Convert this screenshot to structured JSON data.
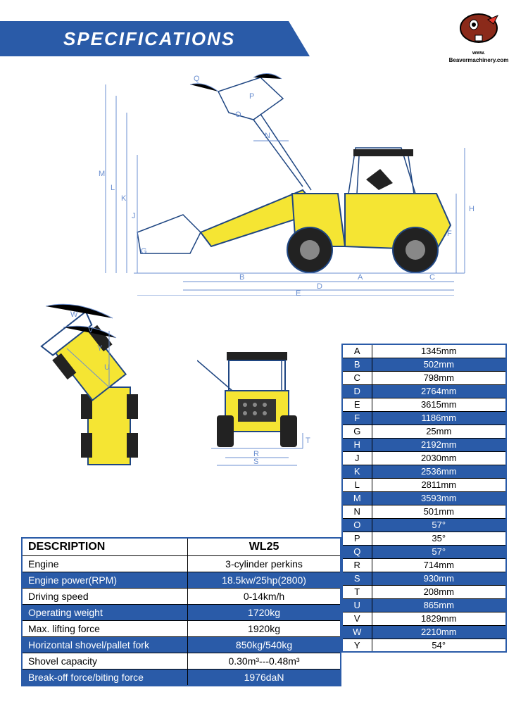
{
  "header": {
    "title": "SPECIFICATIONS"
  },
  "logo": {
    "url_text": "Beavermachinery.com",
    "www": "www."
  },
  "colors": {
    "brand_blue": "#2a5ba8",
    "dark_blue": "#1f4682",
    "machine_yellow": "#f5e533",
    "text_black": "#000000",
    "white": "#ffffff",
    "blueprint_line": "#6b8fd0"
  },
  "dimension_table": {
    "columns": [
      "key",
      "value"
    ],
    "key_width_pct": 18,
    "rows": [
      {
        "key": "A",
        "value": "1345mm",
        "blue": false
      },
      {
        "key": "B",
        "value": "502mm",
        "blue": true
      },
      {
        "key": "C",
        "value": "798mm",
        "blue": false
      },
      {
        "key": "D",
        "value": "2764mm",
        "blue": true
      },
      {
        "key": "E",
        "value": "3615mm",
        "blue": false
      },
      {
        "key": "F",
        "value": "1186mm",
        "blue": true
      },
      {
        "key": "G",
        "value": "25mm",
        "blue": false
      },
      {
        "key": "H",
        "value": "2192mm",
        "blue": true
      },
      {
        "key": "J",
        "value": "2030mm",
        "blue": false
      },
      {
        "key": "K",
        "value": "2536mm",
        "blue": true
      },
      {
        "key": "L",
        "value": "2811mm",
        "blue": false
      },
      {
        "key": "M",
        "value": "3593mm",
        "blue": true
      },
      {
        "key": "N",
        "value": "501mm",
        "blue": false
      },
      {
        "key": "O",
        "value": "57°",
        "blue": true
      },
      {
        "key": "P",
        "value": "35°",
        "blue": false
      },
      {
        "key": "Q",
        "value": "57°",
        "blue": true
      },
      {
        "key": "R",
        "value": "714mm",
        "blue": false
      },
      {
        "key": "S",
        "value": "930mm",
        "blue": true
      },
      {
        "key": "T",
        "value": "208mm",
        "blue": false
      },
      {
        "key": "U",
        "value": "865mm",
        "blue": true
      },
      {
        "key": "V",
        "value": "1829mm",
        "blue": false
      },
      {
        "key": "W",
        "value": "2210mm",
        "blue": true
      },
      {
        "key": "Y",
        "value": "54°",
        "blue": false
      }
    ]
  },
  "description_table": {
    "header": {
      "left": "DESCRIPTION",
      "right": "WL25"
    },
    "rows": [
      {
        "left": "Engine",
        "right": "3-cylinder perkins",
        "blue": false
      },
      {
        "left": "Engine power(RPM)",
        "right": "18.5kw/25hp(2800)",
        "blue": true
      },
      {
        "left": "Driving speed",
        "right": "0-14km/h",
        "blue": false
      },
      {
        "left": "Operating weight",
        "right": "1720kg",
        "blue": true
      },
      {
        "left": "Max. lifting force",
        "right": "1920kg",
        "blue": false
      },
      {
        "left": "Horizontal shovel/pallet fork",
        "right": "850kg/540kg",
        "blue": true
      },
      {
        "left": "Shovel capacity",
        "right": "0.30m³---0.48m³",
        "blue": false
      },
      {
        "left": "Break-off force/biting force",
        "right": "1976daN",
        "blue": true
      }
    ]
  },
  "diagram_labels": {
    "side_view": [
      "A",
      "B",
      "C",
      "D",
      "E",
      "F",
      "G",
      "H",
      "J",
      "K",
      "L",
      "M",
      "N",
      "O",
      "P",
      "Q"
    ],
    "rear_view": [
      "R",
      "S",
      "T"
    ],
    "articulation": [
      "U",
      "V",
      "W",
      "Y"
    ]
  }
}
